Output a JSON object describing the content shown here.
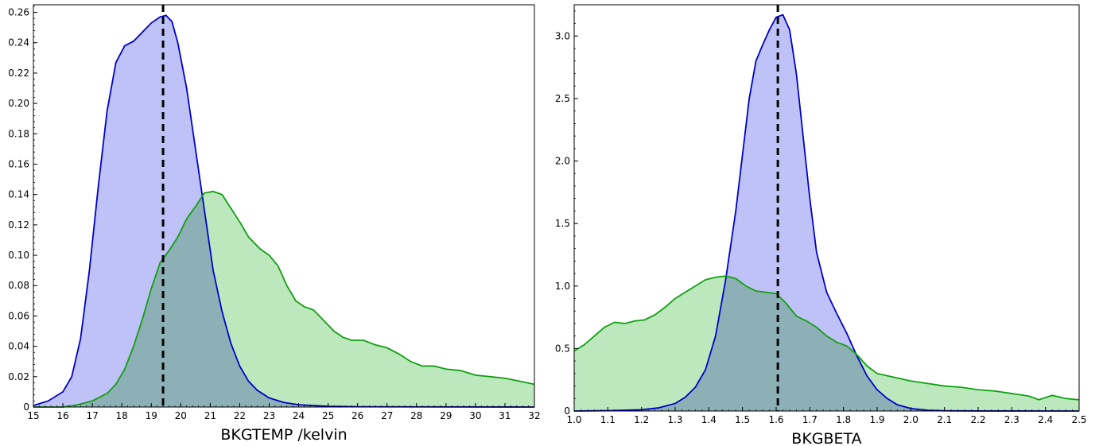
{
  "chart_data": [
    {
      "type": "area",
      "xlabel": "BKGTEMP /kelvin",
      "ylabel": "",
      "xlim": [
        15,
        32
      ],
      "ylim": [
        0,
        0.265
      ],
      "xticks": [
        15,
        16,
        17,
        18,
        19,
        20,
        21,
        22,
        23,
        24,
        25,
        26,
        27,
        28,
        29,
        30,
        31,
        32
      ],
      "yticks": [
        0,
        0.02,
        0.04,
        0.06,
        0.08,
        0.1,
        0.12,
        0.14,
        0.16,
        0.18,
        0.2,
        0.22,
        0.24,
        0.26
      ],
      "ytick_labels": [
        "0",
        "0.02",
        "0.04",
        "0.06",
        "0.08",
        "0.10",
        "0.12",
        "0.14",
        "0.16",
        "0.18",
        "0.20",
        "0.22",
        "0.24",
        "0.26"
      ],
      "marker_line": 19.4,
      "series": [
        {
          "color": "#0000cc",
          "fill": "#b9bdf5",
          "points": [
            [
              15,
              0.001
            ],
            [
              15.5,
              0.004
            ],
            [
              16,
              0.01
            ],
            [
              16.3,
              0.02
            ],
            [
              16.6,
              0.045
            ],
            [
              16.9,
              0.09
            ],
            [
              17.2,
              0.145
            ],
            [
              17.5,
              0.195
            ],
            [
              17.8,
              0.227
            ],
            [
              18.1,
              0.238
            ],
            [
              18.4,
              0.241
            ],
            [
              18.7,
              0.247
            ],
            [
              19.0,
              0.253
            ],
            [
              19.3,
              0.257
            ],
            [
              19.5,
              0.258
            ],
            [
              19.7,
              0.254
            ],
            [
              19.9,
              0.24
            ],
            [
              20.2,
              0.21
            ],
            [
              20.5,
              0.17
            ],
            [
              20.8,
              0.13
            ],
            [
              21.1,
              0.09
            ],
            [
              21.4,
              0.063
            ],
            [
              21.7,
              0.042
            ],
            [
              22.0,
              0.027
            ],
            [
              22.3,
              0.017
            ],
            [
              22.6,
              0.011
            ],
            [
              23.0,
              0.006
            ],
            [
              23.5,
              0.003
            ],
            [
              24.0,
              0.0015
            ],
            [
              25,
              0.0005
            ],
            [
              26,
              0.0002
            ],
            [
              32,
              0
            ]
          ]
        },
        {
          "color": "#10a010",
          "fill": "#b7e6b7",
          "points": [
            [
              15,
              0
            ],
            [
              16,
              0
            ],
            [
              16.5,
              0.0015
            ],
            [
              17,
              0.004
            ],
            [
              17.5,
              0.009
            ],
            [
              17.8,
              0.015
            ],
            [
              18.1,
              0.025
            ],
            [
              18.4,
              0.04
            ],
            [
              18.7,
              0.058
            ],
            [
              19.0,
              0.078
            ],
            [
              19.3,
              0.095
            ],
            [
              19.6,
              0.103
            ],
            [
              19.9,
              0.112
            ],
            [
              20.2,
              0.124
            ],
            [
              20.5,
              0.132
            ],
            [
              20.8,
              0.141
            ],
            [
              21.1,
              0.142
            ],
            [
              21.4,
              0.14
            ],
            [
              21.7,
              0.131
            ],
            [
              22.0,
              0.122
            ],
            [
              22.3,
              0.112
            ],
            [
              22.7,
              0.104
            ],
            [
              23.0,
              0.1
            ],
            [
              23.3,
              0.093
            ],
            [
              23.6,
              0.08
            ],
            [
              23.9,
              0.07
            ],
            [
              24.2,
              0.066
            ],
            [
              24.5,
              0.064
            ],
            [
              24.8,
              0.058
            ],
            [
              25.2,
              0.05
            ],
            [
              25.5,
              0.046
            ],
            [
              25.8,
              0.044
            ],
            [
              26.2,
              0.044
            ],
            [
              26.6,
              0.041
            ],
            [
              27.0,
              0.039
            ],
            [
              27.4,
              0.035
            ],
            [
              27.8,
              0.03
            ],
            [
              28.2,
              0.027
            ],
            [
              28.6,
              0.027
            ],
            [
              29.0,
              0.025
            ],
            [
              29.5,
              0.024
            ],
            [
              30.0,
              0.021
            ],
            [
              30.5,
              0.02
            ],
            [
              31.0,
              0.019
            ],
            [
              31.5,
              0.017
            ],
            [
              32,
              0.015
            ]
          ]
        }
      ]
    },
    {
      "type": "area",
      "xlabel": "BKGBETA",
      "ylabel": "",
      "xlim": [
        1.0,
        2.5
      ],
      "ylim": [
        0,
        3.25
      ],
      "xticks": [
        1.0,
        1.1,
        1.2,
        1.3,
        1.4,
        1.5,
        1.6,
        1.7,
        1.8,
        1.9,
        2.0,
        2.1,
        2.2,
        2.3,
        2.4,
        2.5
      ],
      "xtick_labels": [
        "1.0",
        "1.1",
        "1.2",
        "1.3",
        "1.4",
        "1.5",
        "1.6",
        "1.7",
        "1.8",
        "1.9",
        "2.0",
        "2.1",
        "2.2",
        "2.3",
        "2.4",
        "2.5"
      ],
      "yticks": [
        0,
        0.5,
        1.0,
        1.5,
        2.0,
        2.5,
        3.0
      ],
      "ytick_labels": [
        "0",
        "0.5",
        "1.0",
        "1.5",
        "2.0",
        "2.5",
        "3.0"
      ],
      "marker_line": 1.605,
      "series": [
        {
          "color": "#0000cc",
          "fill": "#b9bdf5",
          "points": [
            [
              1.0,
              0
            ],
            [
              1.1,
              0.003
            ],
            [
              1.2,
              0.01
            ],
            [
              1.25,
              0.025
            ],
            [
              1.3,
              0.06
            ],
            [
              1.33,
              0.11
            ],
            [
              1.36,
              0.19
            ],
            [
              1.39,
              0.33
            ],
            [
              1.42,
              0.6
            ],
            [
              1.45,
              1.05
            ],
            [
              1.48,
              1.6
            ],
            [
              1.5,
              2.05
            ],
            [
              1.52,
              2.5
            ],
            [
              1.54,
              2.8
            ],
            [
              1.56,
              2.93
            ],
            [
              1.58,
              3.05
            ],
            [
              1.6,
              3.15
            ],
            [
              1.62,
              3.17
            ],
            [
              1.64,
              3.05
            ],
            [
              1.66,
              2.7
            ],
            [
              1.68,
              2.2
            ],
            [
              1.7,
              1.7
            ],
            [
              1.72,
              1.27
            ],
            [
              1.75,
              0.95
            ],
            [
              1.78,
              0.78
            ],
            [
              1.81,
              0.62
            ],
            [
              1.84,
              0.44
            ],
            [
              1.87,
              0.28
            ],
            [
              1.9,
              0.17
            ],
            [
              1.93,
              0.1
            ],
            [
              1.96,
              0.05
            ],
            [
              2.0,
              0.02
            ],
            [
              2.05,
              0.006
            ],
            [
              2.1,
              0.002
            ],
            [
              2.2,
              0.0005
            ],
            [
              2.5,
              0
            ]
          ]
        },
        {
          "color": "#10a010",
          "fill": "#b7e6b7",
          "points": [
            [
              1.0,
              0.48
            ],
            [
              1.03,
              0.53
            ],
            [
              1.06,
              0.6
            ],
            [
              1.09,
              0.67
            ],
            [
              1.12,
              0.71
            ],
            [
              1.15,
              0.7
            ],
            [
              1.18,
              0.72
            ],
            [
              1.21,
              0.73
            ],
            [
              1.24,
              0.77
            ],
            [
              1.27,
              0.83
            ],
            [
              1.3,
              0.9
            ],
            [
              1.33,
              0.95
            ],
            [
              1.36,
              1.0
            ],
            [
              1.39,
              1.05
            ],
            [
              1.42,
              1.07
            ],
            [
              1.45,
              1.08
            ],
            [
              1.48,
              1.06
            ],
            [
              1.51,
              1.0
            ],
            [
              1.54,
              0.96
            ],
            [
              1.57,
              0.95
            ],
            [
              1.6,
              0.94
            ],
            [
              1.63,
              0.86
            ],
            [
              1.66,
              0.76
            ],
            [
              1.69,
              0.72
            ],
            [
              1.72,
              0.67
            ],
            [
              1.75,
              0.6
            ],
            [
              1.78,
              0.55
            ],
            [
              1.81,
              0.52
            ],
            [
              1.84,
              0.45
            ],
            [
              1.87,
              0.36
            ],
            [
              1.9,
              0.3
            ],
            [
              1.95,
              0.27
            ],
            [
              2.0,
              0.24
            ],
            [
              2.05,
              0.22
            ],
            [
              2.1,
              0.2
            ],
            [
              2.15,
              0.19
            ],
            [
              2.2,
              0.17
            ],
            [
              2.25,
              0.16
            ],
            [
              2.3,
              0.14
            ],
            [
              2.35,
              0.12
            ],
            [
              2.38,
              0.09
            ],
            [
              2.42,
              0.125
            ],
            [
              2.46,
              0.1
            ],
            [
              2.5,
              0.09
            ]
          ]
        }
      ]
    }
  ]
}
